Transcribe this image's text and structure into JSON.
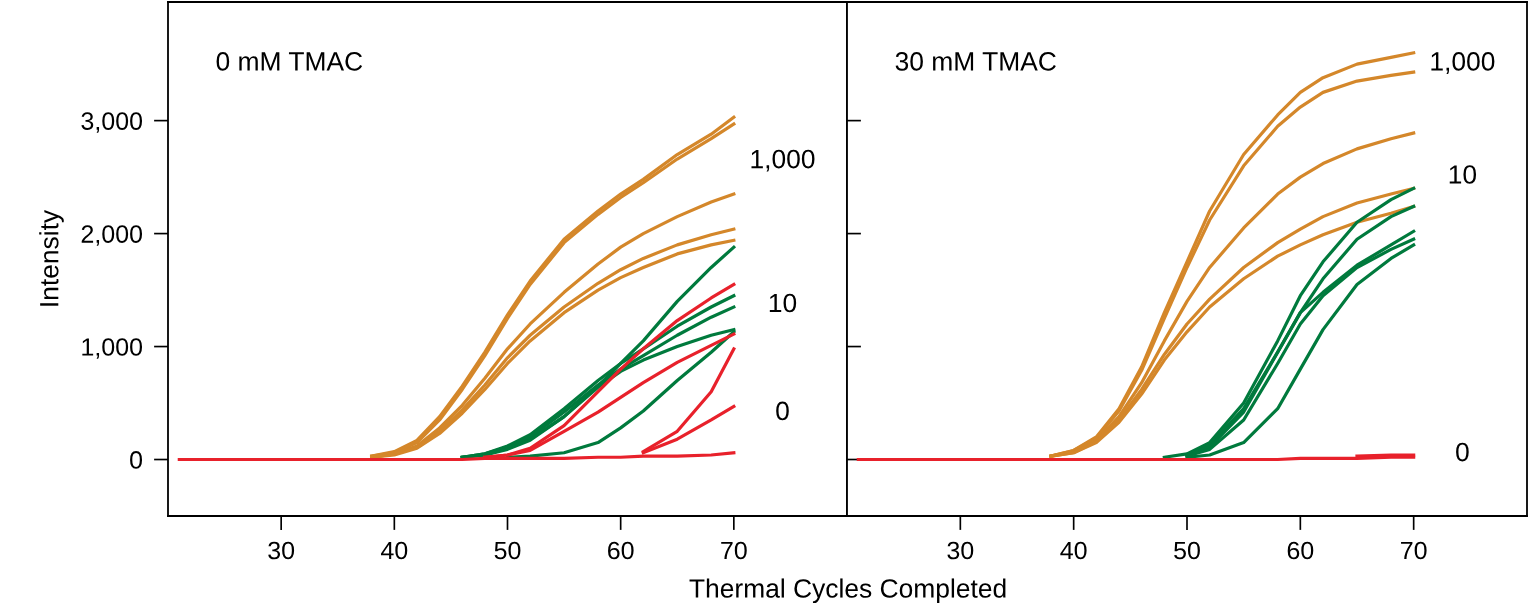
{
  "chart_data": [
    {
      "type": "line",
      "title": "0 mM TMAC",
      "xlabel": "Thermal Cycles Completed",
      "ylabel": "Intensity",
      "x": [
        21,
        30,
        38,
        40,
        42,
        44,
        46,
        48,
        50,
        52,
        55,
        58,
        60,
        62,
        65,
        68,
        70
      ],
      "xlim": [
        20,
        80
      ],
      "xticks": [
        30,
        40,
        50,
        60,
        70
      ],
      "ylim": [
        -500,
        4050
      ],
      "yticks": [
        {
          "value": 0,
          "label": "0"
        },
        {
          "value": 1000,
          "label": "1,000"
        },
        {
          "value": 2000,
          "label": "2,000"
        },
        {
          "value": 3000,
          "label": "3,000"
        }
      ],
      "grid": false,
      "marker": "none",
      "line_style": "solid",
      "annotations": [
        "1,000",
        "10",
        "0"
      ],
      "series": [
        {
          "color": "#d4872a",
          "values": [
            null,
            null,
            30,
            70,
            170,
            380,
            650,
            950,
            1280,
            1580,
            1950,
            2200,
            2350,
            2480,
            2700,
            2880,
            3030
          ]
        },
        {
          "color": "#d4872a",
          "values": [
            null,
            null,
            30,
            60,
            150,
            350,
            620,
            920,
            1250,
            1550,
            1920,
            2170,
            2320,
            2450,
            2660,
            2840,
            2970
          ]
        },
        {
          "color": "#d4872a",
          "values": [
            null,
            null,
            20,
            50,
            120,
            280,
            480,
            720,
            980,
            1200,
            1480,
            1730,
            1880,
            2000,
            2150,
            2280,
            2350
          ]
        },
        {
          "color": "#d4872a",
          "values": [
            null,
            null,
            20,
            50,
            110,
            250,
            440,
            660,
            900,
            1100,
            1350,
            1560,
            1680,
            1780,
            1900,
            1990,
            2040
          ]
        },
        {
          "color": "#d4872a",
          "values": [
            null,
            null,
            20,
            40,
            100,
            230,
            410,
            620,
            850,
            1050,
            1300,
            1500,
            1610,
            1700,
            1820,
            1900,
            1940
          ]
        },
        {
          "color": "#007a3d",
          "values": [
            null,
            null,
            null,
            null,
            null,
            null,
            20,
            40,
            100,
            180,
            380,
            650,
            850,
            1050,
            1400,
            1700,
            1880
          ]
        },
        {
          "color": "#007a3d",
          "values": [
            null,
            null,
            null,
            null,
            null,
            null,
            20,
            50,
            120,
            220,
            450,
            700,
            850,
            980,
            1180,
            1350,
            1450
          ]
        },
        {
          "color": "#007a3d",
          "values": [
            null,
            null,
            null,
            null,
            null,
            null,
            20,
            50,
            110,
            200,
            420,
            660,
            800,
            920,
            1100,
            1260,
            1350
          ]
        },
        {
          "color": "#007a3d",
          "values": [
            null,
            null,
            null,
            null,
            null,
            null,
            20,
            40,
            90,
            170,
            380,
            640,
            780,
            880,
            1000,
            1100,
            1150
          ]
        },
        {
          "color": "#007a3d",
          "values": [
            null,
            null,
            null,
            null,
            null,
            null,
            null,
            null,
            20,
            30,
            60,
            150,
            280,
            430,
            700,
            950,
            1130
          ]
        },
        {
          "color": "#e8212b",
          "values": [
            null,
            null,
            null,
            null,
            null,
            null,
            null,
            20,
            40,
            100,
            300,
            600,
            800,
            980,
            1230,
            1430,
            1550
          ]
        },
        {
          "color": "#e8212b",
          "values": [
            null,
            null,
            null,
            null,
            null,
            null,
            null,
            20,
            40,
            80,
            250,
            420,
            550,
            680,
            860,
            1010,
            1110
          ]
        },
        {
          "color": "#e8212b",
          "values": [
            null,
            null,
            null,
            null,
            null,
            null,
            null,
            null,
            null,
            null,
            null,
            null,
            null,
            70,
            250,
            600,
            980
          ]
        },
        {
          "color": "#e8212b",
          "values": [
            null,
            null,
            null,
            null,
            null,
            null,
            null,
            null,
            null,
            null,
            null,
            null,
            null,
            60,
            180,
            350,
            470
          ]
        },
        {
          "color": "#e8212b",
          "values": [
            0,
            0,
            0,
            0,
            0,
            0,
            0,
            10,
            10,
            10,
            10,
            20,
            20,
            30,
            30,
            40,
            60
          ]
        }
      ]
    },
    {
      "type": "line",
      "title": "30 mM TMAC",
      "x": [
        21,
        30,
        38,
        40,
        42,
        44,
        46,
        48,
        50,
        52,
        55,
        58,
        60,
        62,
        65,
        68,
        70
      ],
      "xlim": [
        20,
        80
      ],
      "xticks": [
        30,
        40,
        50,
        60,
        70
      ],
      "ylim": [
        -500,
        4050
      ],
      "yticks": [
        0,
        1000,
        2000,
        3000
      ],
      "tick_labels": "x",
      "grid": false,
      "marker": "none",
      "line_style": "solid",
      "annotations": [
        "1,000",
        "10",
        "0"
      ],
      "series": [
        {
          "color": "#d4872a",
          "values": [
            null,
            null,
            30,
            80,
            200,
            450,
            820,
            1300,
            1750,
            2200,
            2700,
            3050,
            3250,
            3380,
            3500,
            3560,
            3600
          ]
        },
        {
          "color": "#d4872a",
          "values": [
            null,
            null,
            30,
            80,
            190,
            430,
            790,
            1250,
            1700,
            2120,
            2600,
            2950,
            3120,
            3250,
            3350,
            3400,
            3430
          ]
        },
        {
          "color": "#d4872a",
          "values": [
            null,
            null,
            30,
            70,
            170,
            380,
            680,
            1050,
            1400,
            1700,
            2050,
            2350,
            2500,
            2620,
            2750,
            2840,
            2890
          ]
        },
        {
          "color": "#d4872a",
          "values": [
            null,
            null,
            30,
            60,
            160,
            350,
            620,
            930,
            1200,
            1420,
            1700,
            1920,
            2040,
            2150,
            2270,
            2350,
            2400
          ]
        },
        {
          "color": "#d4872a",
          "values": [
            null,
            null,
            30,
            60,
            150,
            330,
            580,
            880,
            1130,
            1350,
            1600,
            1800,
            1900,
            1990,
            2100,
            2180,
            2240
          ]
        },
        {
          "color": "#007a3d",
          "values": [
            null,
            null,
            null,
            null,
            null,
            null,
            null,
            20,
            50,
            150,
            500,
            1050,
            1450,
            1750,
            2100,
            2300,
            2400
          ]
        },
        {
          "color": "#007a3d",
          "values": [
            null,
            null,
            null,
            null,
            null,
            null,
            null,
            null,
            40,
            130,
            450,
            950,
            1300,
            1600,
            1950,
            2150,
            2240
          ]
        },
        {
          "color": "#007a3d",
          "values": [
            null,
            null,
            null,
            null,
            null,
            null,
            null,
            null,
            40,
            110,
            420,
            950,
            1300,
            1480,
            1720,
            1900,
            2020
          ]
        },
        {
          "color": "#007a3d",
          "values": [
            null,
            null,
            null,
            null,
            null,
            null,
            null,
            null,
            30,
            90,
            350,
            850,
            1200,
            1450,
            1700,
            1860,
            1950
          ]
        },
        {
          "color": "#007a3d",
          "values": [
            null,
            null,
            null,
            null,
            null,
            null,
            null,
            null,
            20,
            40,
            150,
            450,
            800,
            1150,
            1550,
            1780,
            1900
          ]
        },
        {
          "color": "#e8212b",
          "values": [
            null,
            null,
            null,
            null,
            null,
            null,
            null,
            null,
            null,
            null,
            null,
            null,
            null,
            null,
            30,
            40,
            40
          ]
        },
        {
          "color": "#e8212b",
          "values": [
            0,
            0,
            0,
            0,
            0,
            0,
            0,
            0,
            0,
            0,
            0,
            0,
            10,
            10,
            10,
            20,
            20
          ]
        }
      ]
    }
  ]
}
